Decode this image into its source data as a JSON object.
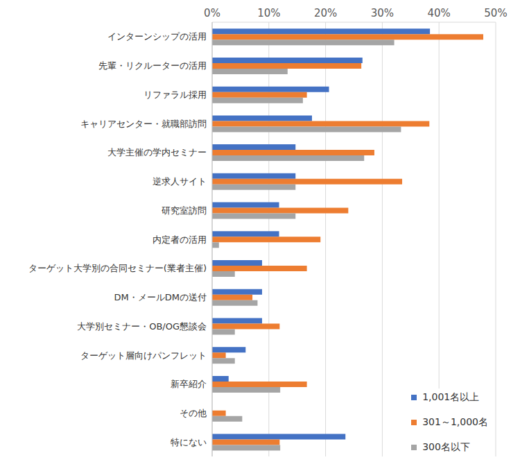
{
  "chart_data": {
    "type": "bar",
    "orientation": "horizontal",
    "categories": [
      "インターンシップの活用",
      "先輩・リクルーターの活用",
      "リファラル採用",
      "キャリアセンター・就職部訪問",
      "大学主催の学内セミナー",
      "逆求人サイト",
      "研究室訪問",
      "内定者の活用",
      "ターゲット大学別の合同セミナー(業者主催)",
      "DM・メールDMの送付",
      "大学別セミナー・OB/OG懇談会",
      "ターゲット層向けパンフレット",
      "新卒紹介",
      "その他",
      "特にない"
    ],
    "series": [
      {
        "name": "1,001名以上",
        "color": "#4472c4",
        "values": [
          38.4,
          26.5,
          20.6,
          17.6,
          14.7,
          14.7,
          11.8,
          11.8,
          8.8,
          8.8,
          8.8,
          5.9,
          2.9,
          0,
          23.5
        ]
      },
      {
        "name": "301～1,000名",
        "color": "#ed7d31",
        "values": [
          47.8,
          26.3,
          16.7,
          38.3,
          28.6,
          33.5,
          24.0,
          19.1,
          16.7,
          7.1,
          11.9,
          2.4,
          16.7,
          2.4,
          11.9
        ]
      },
      {
        "name": "300名以下",
        "color": "#a5a5a5",
        "values": [
          32.1,
          13.3,
          16.0,
          33.3,
          26.8,
          14.7,
          14.7,
          1.2,
          4.0,
          8.0,
          4.0,
          4.0,
          12.0,
          5.3,
          12.0
        ]
      }
    ],
    "xlim": [
      0,
      50
    ],
    "xticks": [
      {
        "value": 0,
        "label": "0%"
      },
      {
        "value": 10,
        "label": "10%"
      },
      {
        "value": 20,
        "label": "20%"
      },
      {
        "value": 30,
        "label": "30%"
      },
      {
        "value": 40,
        "label": "40%"
      },
      {
        "value": 50,
        "label": "50%"
      }
    ],
    "grid": true,
    "legend": "bottom right"
  }
}
